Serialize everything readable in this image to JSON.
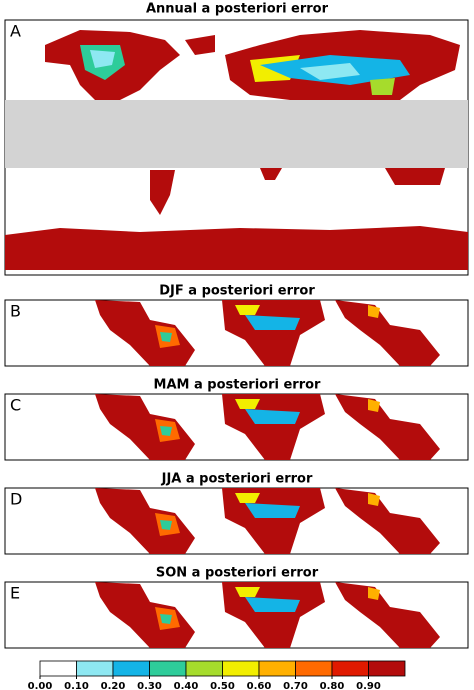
{
  "panels": [
    {
      "letter": "A",
      "title": "Annual a posteriori error"
    },
    {
      "letter": "B",
      "title": "DJF a posteriori error"
    },
    {
      "letter": "C",
      "title": "MAM a posteriori error"
    },
    {
      "letter": "D",
      "title": "JJA a posteriori error"
    },
    {
      "letter": "E",
      "title": "SON a posteriori error"
    }
  ],
  "colorbar": {
    "colors": [
      "#ffffff",
      "#8ee8f2",
      "#14b4e6",
      "#2ecc9a",
      "#a6dc2c",
      "#f2ee00",
      "#ffb000",
      "#ff6a00",
      "#e01a00",
      "#b30c0c"
    ],
    "ticks": [
      {
        "value": 0,
        "label": "0.00"
      },
      {
        "value": 0.1,
        "label": "0.10"
      },
      {
        "value": 0.2,
        "label": "0.20"
      },
      {
        "value": 0.3,
        "label": "0.30"
      },
      {
        "value": 0.4,
        "label": "0.40"
      },
      {
        "value": 0.5,
        "label": "0.50"
      },
      {
        "value": 0.6,
        "label": "0.60"
      },
      {
        "value": 0.7,
        "label": "0.70"
      },
      {
        "value": 0.8,
        "label": "0.80"
      },
      {
        "value": 0.9,
        "label": "0.90"
      }
    ]
  }
}
